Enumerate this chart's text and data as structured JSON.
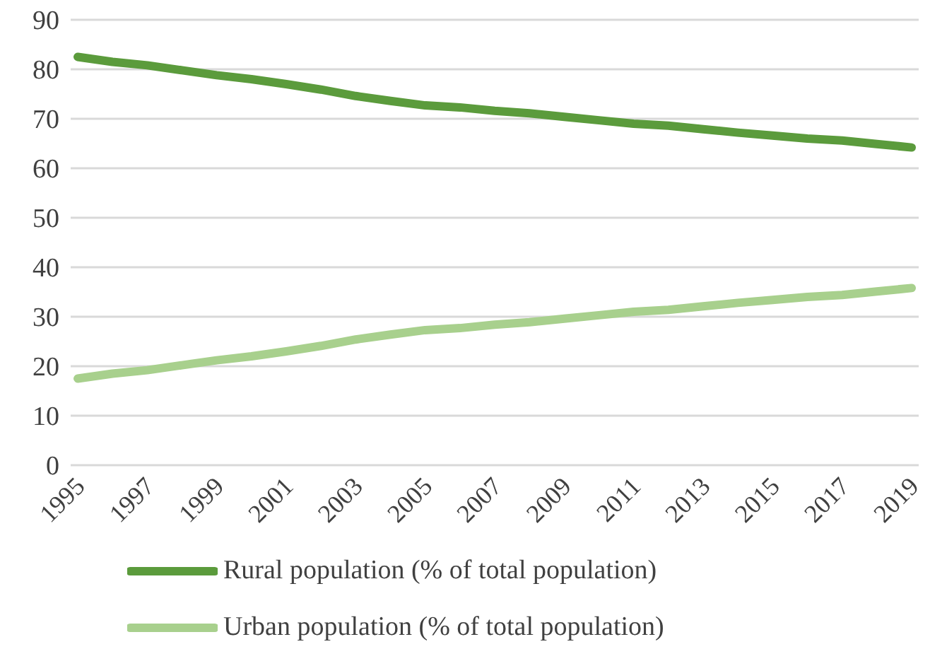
{
  "chart_data": {
    "type": "line",
    "categories": [
      "1995",
      null,
      "1997",
      null,
      "1999",
      null,
      "2001",
      null,
      "2003",
      null,
      "2005",
      null,
      "2007",
      null,
      "2009",
      null,
      "2011",
      null,
      "2013",
      null,
      "2015",
      null,
      "2017",
      null,
      "2019"
    ],
    "series": [
      {
        "name": "Rural population (% of total population)",
        "color": "#5b9b3c",
        "values": [
          82.5,
          81.5,
          80.8,
          79.8,
          78.8,
          78.0,
          77.0,
          75.9,
          74.6,
          73.6,
          72.7,
          72.3,
          71.6,
          71.1,
          70.4,
          69.7,
          69.0,
          68.6,
          67.9,
          67.2,
          66.6,
          66.0,
          65.6,
          64.9,
          64.2
        ]
      },
      {
        "name": "Urban population (% of total population)",
        "color": "#a8d08d",
        "values": [
          17.5,
          18.5,
          19.2,
          20.2,
          21.2,
          22.0,
          23.0,
          24.1,
          25.4,
          26.4,
          27.3,
          27.7,
          28.4,
          28.9,
          29.6,
          30.3,
          31.0,
          31.4,
          32.1,
          32.8,
          33.4,
          34.0,
          34.4,
          35.1,
          35.8
        ]
      }
    ],
    "ylim": [
      0,
      90
    ],
    "yticks": [
      0,
      10,
      20,
      30,
      40,
      50,
      60,
      70,
      80,
      90
    ],
    "grid": "y",
    "legend": "bottom",
    "marker": "none",
    "line_style": "solid"
  }
}
